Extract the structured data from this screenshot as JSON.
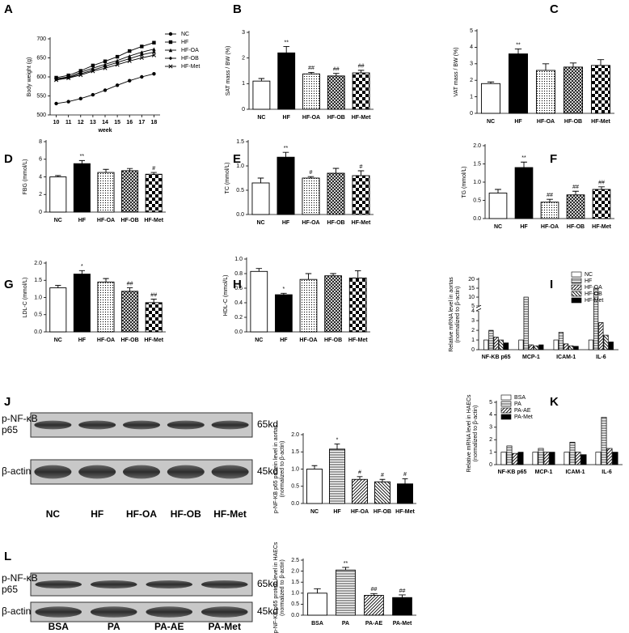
{
  "chart_data": [
    {
      "type": "line",
      "panel": "A",
      "ylabel": [
        "Body weight (g)"
      ],
      "xlabel": "week",
      "x": [
        10,
        11,
        12,
        13,
        14,
        15,
        16,
        17,
        18
      ],
      "xlim": [
        9.5,
        18.5
      ],
      "xticks": [
        10,
        11,
        12,
        13,
        14,
        15,
        16,
        17,
        18
      ],
      "ylim": [
        500,
        700
      ],
      "yticks": [
        500,
        550,
        600,
        650,
        700
      ],
      "legend": "right",
      "series": [
        {
          "name": "NC",
          "color": "#000000",
          "marker": "circle",
          "values": [
            530,
            535,
            543,
            553,
            565,
            578,
            590,
            600,
            608
          ]
        },
        {
          "name": "HF",
          "color": "#000000",
          "marker": "square",
          "values": [
            598,
            604,
            616,
            630,
            641,
            653,
            668,
            680,
            690
          ]
        },
        {
          "name": "HF-OA",
          "color": "#000000",
          "marker": "triangle",
          "values": [
            595,
            600,
            612,
            623,
            633,
            643,
            655,
            665,
            673
          ]
        },
        {
          "name": "HF-OB",
          "color": "#000000",
          "marker": "diamond",
          "values": [
            594,
            598,
            608,
            618,
            628,
            638,
            648,
            658,
            665
          ]
        },
        {
          "name": "HF-Met",
          "color": "#000000",
          "marker": "cross",
          "values": [
            592,
            597,
            605,
            615,
            623,
            632,
            642,
            650,
            657
          ]
        }
      ]
    },
    {
      "type": "bar",
      "panel": "B",
      "ylabel": [
        "SAT mass / BW (%)"
      ],
      "categories": [
        "NC",
        "HF",
        "HF-OA",
        "HF-OB",
        "HF-Met"
      ],
      "values": [
        1.1,
        2.2,
        1.38,
        1.3,
        1.42
      ],
      "errors": [
        0.1,
        0.25,
        0.06,
        0.1,
        0.1
      ],
      "annotations": [
        null,
        "**",
        "##",
        "##",
        "##"
      ],
      "fills": [
        "white",
        "black",
        "dots",
        "crosshatch",
        "checker"
      ],
      "ylim": [
        0,
        3
      ],
      "yticks": [
        0,
        1,
        2,
        3
      ]
    },
    {
      "type": "bar",
      "panel": "C",
      "ylabel": [
        "VAT mass / BW (%)"
      ],
      "categories": [
        "NC",
        "HF",
        "HF-OA",
        "HF-OB",
        "HF-Met"
      ],
      "values": [
        1.8,
        3.6,
        2.6,
        2.8,
        2.9
      ],
      "errors": [
        0.1,
        0.3,
        0.4,
        0.25,
        0.35
      ],
      "annotations": [
        null,
        "**",
        null,
        null,
        null
      ],
      "fills": [
        "white",
        "black",
        "dots",
        "crosshatch",
        "checker"
      ],
      "ylim": [
        0,
        5
      ],
      "yticks": [
        0,
        1,
        2,
        3,
        4,
        5
      ]
    },
    {
      "type": "bar",
      "panel": "D",
      "ylabel": [
        "FBG (mmol/L)"
      ],
      "categories": [
        "NC",
        "HF",
        "HF-OA",
        "HF-OB",
        "HF-Met"
      ],
      "values": [
        4.0,
        5.5,
        4.5,
        4.7,
        4.3
      ],
      "errors": [
        0.15,
        0.35,
        0.35,
        0.25,
        0.2
      ],
      "annotations": [
        null,
        "**",
        null,
        null,
        "#"
      ],
      "fills": [
        "white",
        "black",
        "dots",
        "crosshatch",
        "checker"
      ],
      "ylim": [
        0,
        8
      ],
      "yticks": [
        0,
        2,
        4,
        6,
        8
      ]
    },
    {
      "type": "bar",
      "panel": "E",
      "ylabel": [
        "TC (mmol/L)"
      ],
      "categories": [
        "NC",
        "HF",
        "HF-OA",
        "HF-OB",
        "HF-Met"
      ],
      "values": [
        0.65,
        1.18,
        0.75,
        0.85,
        0.8
      ],
      "errors": [
        0.1,
        0.1,
        0.03,
        0.1,
        0.1
      ],
      "annotations": [
        null,
        "**",
        "#",
        null,
        "#"
      ],
      "fills": [
        "white",
        "black",
        "dots",
        "crosshatch",
        "checker"
      ],
      "ylim": [
        0,
        1.5
      ],
      "yticks": [
        {
          "value": 0,
          "label": "0.0"
        },
        0.5,
        {
          "value": 1,
          "label": "1.0"
        },
        1.5
      ]
    },
    {
      "type": "bar",
      "panel": "F",
      "ylabel": [
        "TG (mmol/L)"
      ],
      "categories": [
        "NC",
        "HF",
        "HF-OA",
        "HF-OB",
        "HF-Met"
      ],
      "values": [
        0.7,
        1.4,
        0.45,
        0.65,
        0.8
      ],
      "errors": [
        0.1,
        0.15,
        0.08,
        0.1,
        0.07
      ],
      "annotations": [
        null,
        "**",
        "##",
        "##",
        "##"
      ],
      "fills": [
        "white",
        "black",
        "dots",
        "crosshatch",
        "checker"
      ],
      "ylim": [
        0,
        2
      ],
      "yticks": [
        {
          "value": 0,
          "label": "0.0"
        },
        0.5,
        {
          "value": 1,
          "label": "1.0"
        },
        1.5,
        {
          "value": 2,
          "label": "2.0"
        }
      ]
    },
    {
      "type": "bar",
      "panel": "G",
      "ylabel": [
        "LDL-C (mmol/L)"
      ],
      "categories": [
        "NC",
        "HF",
        "HF-OA",
        "HF-OB",
        "HF-Met"
      ],
      "values": [
        1.28,
        1.68,
        1.45,
        1.18,
        0.85
      ],
      "errors": [
        0.07,
        0.1,
        0.1,
        0.1,
        0.1
      ],
      "annotations": [
        null,
        "*",
        null,
        "##",
        "##"
      ],
      "fills": [
        "white",
        "black",
        "dots",
        "crosshatch",
        "checker"
      ],
      "ylim": [
        0,
        2
      ],
      "yticks": [
        {
          "value": 0,
          "label": "0.0"
        },
        0.5,
        {
          "value": 1,
          "label": "1.0"
        },
        1.5,
        {
          "value": 2,
          "label": "2.0"
        }
      ]
    },
    {
      "type": "bar",
      "panel": "H",
      "ylabel": [
        "HDL-C (mmol/L)"
      ],
      "categories": [
        "NC",
        "HF",
        "HF-OA",
        "HF-OB",
        "HF-Met"
      ],
      "values": [
        0.83,
        0.51,
        0.72,
        0.77,
        0.74
      ],
      "errors": [
        0.04,
        0.02,
        0.08,
        0.03,
        0.1
      ],
      "annotations": [
        null,
        "*",
        null,
        null,
        null
      ],
      "fills": [
        "white",
        "black",
        "dots",
        "crosshatch",
        "checker"
      ],
      "ylim": [
        0,
        1
      ],
      "yticks": [
        {
          "value": 0,
          "label": "0.0"
        },
        0.2,
        0.4,
        0.6,
        0.8,
        {
          "value": 1,
          "label": "1.0"
        }
      ]
    },
    {
      "type": "grouped_bar",
      "panel": "I",
      "ylabel": [
        "Relative mRNA level in aortas",
        "(normalized to β-actin)"
      ],
      "categories": [
        "NF-KB p65",
        "MCP-1",
        "ICAM-1",
        "IL-6"
      ],
      "ylim": [
        0,
        20
      ],
      "ybreak": [
        4,
        5
      ],
      "yticks": [
        0,
        1,
        2,
        3,
        4,
        5,
        10,
        15,
        20
      ],
      "legend": "upper right",
      "series": [
        {
          "name": "NC",
          "fill": "white",
          "values": [
            1,
            1,
            1,
            1
          ]
        },
        {
          "name": "HF",
          "fill": "hstripes",
          "values": [
            2.0,
            10,
            1.8,
            15
          ]
        },
        {
          "name": "HF-OA",
          "fill": "diag",
          "values": [
            1.3,
            0.5,
            0.6,
            2.8
          ]
        },
        {
          "name": "HF-OB",
          "fill": "backdiag",
          "values": [
            1.0,
            0.4,
            0.4,
            1.5
          ]
        },
        {
          "name": "HF-Met",
          "fill": "black",
          "values": [
            0.7,
            0.5,
            0.35,
            0.8
          ]
        }
      ]
    },
    {
      "type": "bar",
      "ylabel": [
        "p-NF-KB p65 protein level in aortas",
        "(normalized to β-actin)"
      ],
      "categories": [
        "NC",
        "HF",
        "HF-OA",
        "HF-OB",
        "HF-Met"
      ],
      "values": [
        1.0,
        1.58,
        0.7,
        0.63,
        0.57
      ],
      "errors": [
        0.1,
        0.15,
        0.08,
        0.07,
        0.15
      ],
      "annotations": [
        null,
        "*",
        "#",
        "#",
        "#"
      ],
      "fills": [
        "white",
        "hstripes",
        "diag",
        "backdiag",
        "black"
      ],
      "ylim": [
        0,
        2
      ],
      "yticks": [
        {
          "value": 0,
          "label": "0.0"
        },
        0.5,
        {
          "value": 1,
          "label": "1.0"
        },
        1.5,
        {
          "value": 2,
          "label": "2.0"
        }
      ]
    },
    {
      "type": "grouped_bar",
      "panel": "K",
      "ylabel": [
        "Relative mRNA level in HAECs",
        "(normalized to β-actin)"
      ],
      "categories": [
        "NF-KB p65",
        "MCP-1",
        "ICAM-1",
        "IL-6"
      ],
      "ylim": [
        0,
        5
      ],
      "yticks": [
        0,
        1,
        2,
        3,
        4,
        5
      ],
      "legend": "upper left",
      "series": [
        {
          "name": "BSA",
          "fill": "white",
          "values": [
            1,
            1,
            1,
            1
          ]
        },
        {
          "name": "PA",
          "fill": "hstripes",
          "values": [
            1.5,
            1.3,
            1.8,
            3.8
          ]
        },
        {
          "name": "PA-AE",
          "fill": "diag",
          "values": [
            0.9,
            1.0,
            1.0,
            1.3
          ]
        },
        {
          "name": "PA-Met",
          "fill": "black",
          "values": [
            1.0,
            1.0,
            0.8,
            1.0
          ]
        }
      ]
    },
    {
      "type": "bar",
      "ylabel": [
        "p-NF-KB p65 protein level in HAECs",
        "(normalized to β-actin)"
      ],
      "categories": [
        "BSA",
        "PA",
        "PA-AE",
        "PA-Met"
      ],
      "values": [
        1.0,
        2.05,
        0.9,
        0.8
      ],
      "errors": [
        0.2,
        0.12,
        0.08,
        0.12
      ],
      "annotations": [
        null,
        "**",
        "##",
        "##"
      ],
      "fills": [
        "white",
        "hstripes",
        "diag",
        "black"
      ],
      "ylim": [
        0,
        2.5
      ],
      "yticks": [
        {
          "value": 0,
          "label": "0.0"
        },
        0.5,
        {
          "value": 1,
          "label": "1.0"
        },
        1.5,
        {
          "value": 2,
          "label": "2.0"
        },
        2.5
      ]
    }
  ],
  "blots": [
    {
      "panel": "J",
      "lanes": [
        "NC",
        "HF",
        "HF-OA",
        "HF-OB",
        "HF-Met"
      ],
      "rows": [
        {
          "label": [
            "p-NF-κB",
            "p65"
          ],
          "size": "65kd"
        },
        {
          "label": [
            "β-actin"
          ],
          "size": "45kd"
        }
      ]
    },
    {
      "panel": "L",
      "lanes": [
        "BSA",
        "PA",
        "PA-AE",
        "PA-Met"
      ],
      "rows": [
        {
          "label": [
            "p-NF-κB",
            "p65"
          ],
          "size": "65kd"
        },
        {
          "label": [
            "β-actin"
          ],
          "size": "45kd"
        }
      ]
    }
  ]
}
